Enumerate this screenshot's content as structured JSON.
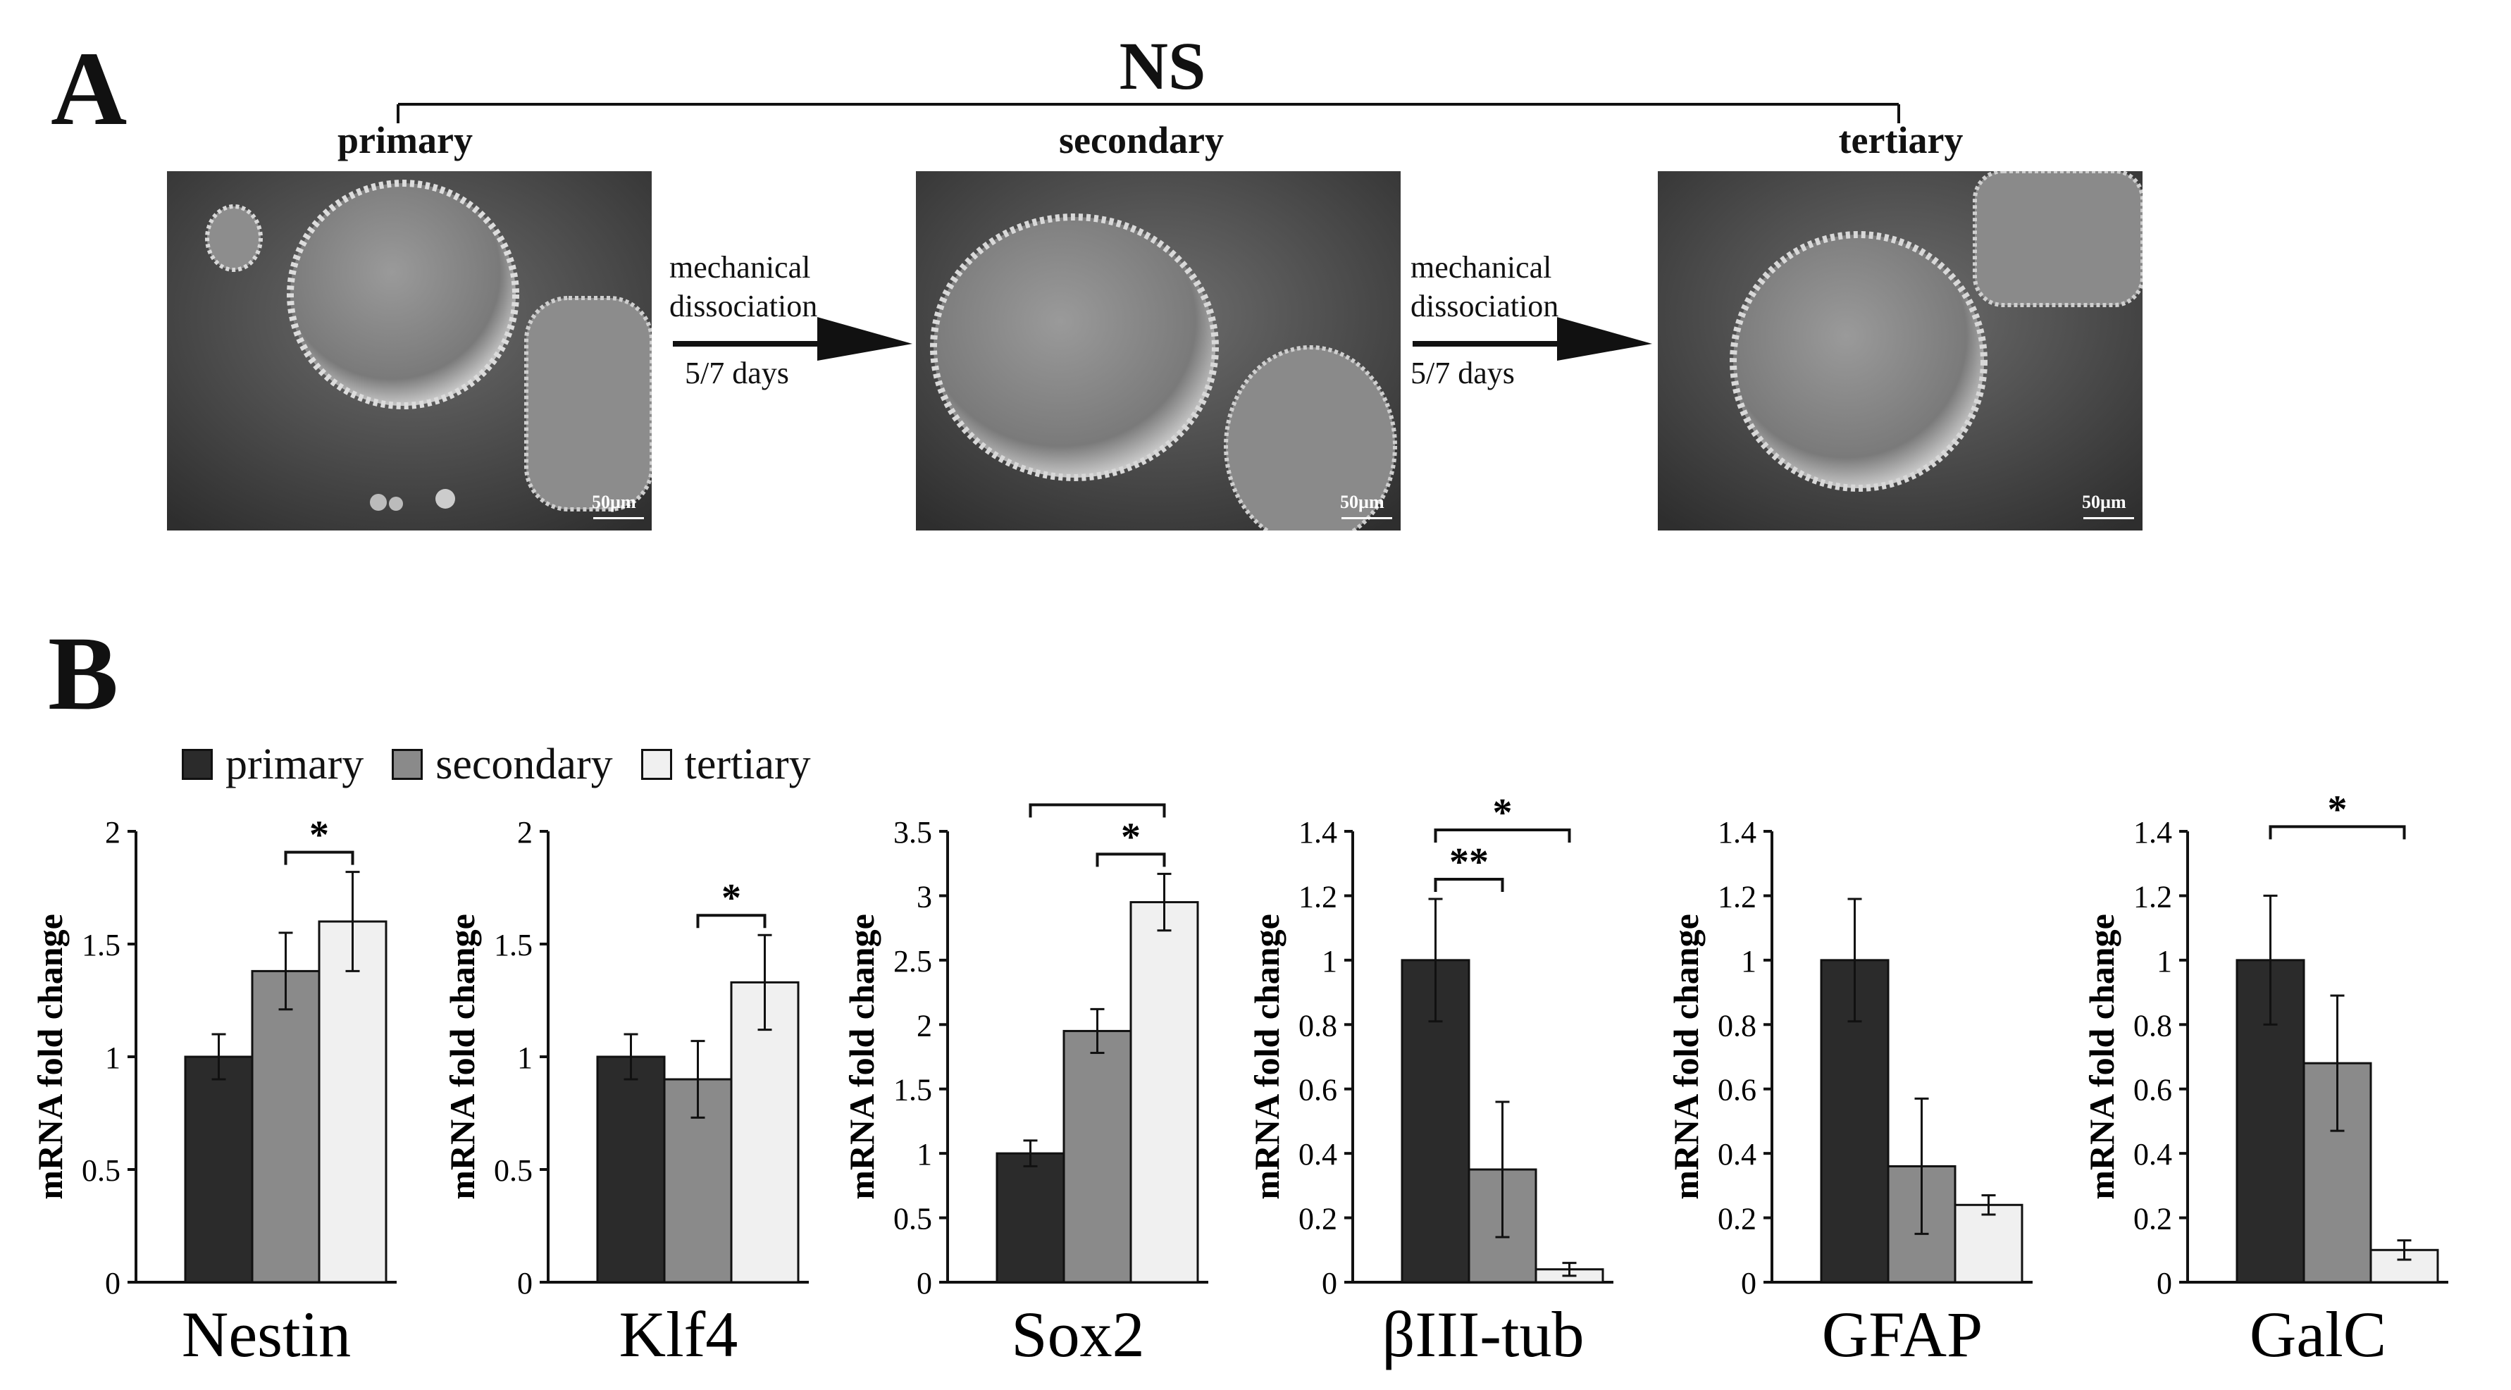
{
  "panel_a": {
    "letter": "A",
    "group_label": "NS",
    "stages": [
      {
        "label": "primary",
        "scale_bar": "50µm"
      },
      {
        "label": "secondary",
        "scale_bar": "50µm"
      },
      {
        "label": "tertiary",
        "scale_bar": "50µm"
      }
    ],
    "arrows": [
      {
        "line1": "mechanical",
        "line2": "dissociation",
        "line3": "5/7 days"
      },
      {
        "line1": "mechanical",
        "line2": "dissociation",
        "line3": "5/7 days"
      }
    ]
  },
  "panel_b": {
    "letter": "B",
    "legend": [
      {
        "label": "primary",
        "color": "#2b2b2b"
      },
      {
        "label": "secondary",
        "color": "#8a8a8a"
      },
      {
        "label": "tertiary",
        "color": "#f0f0f0"
      }
    ]
  },
  "chart_data": [
    {
      "type": "bar",
      "title": "Nestin",
      "ylabel": "mRNA fold change",
      "categories": [
        "primary",
        "secondary",
        "tertiary"
      ],
      "values": [
        1.0,
        1.38,
        1.6
      ],
      "errors": [
        0.1,
        0.17,
        0.22
      ],
      "ylim": [
        0,
        2
      ],
      "yticks": [
        "0",
        "0.5",
        "1",
        "1.5",
        "2"
      ],
      "significance": [
        {
          "from": 1,
          "to": 2,
          "label": "*"
        }
      ]
    },
    {
      "type": "bar",
      "title": "Klf4",
      "ylabel": "mRNA fold change",
      "categories": [
        "primary",
        "secondary",
        "tertiary"
      ],
      "values": [
        1.0,
        0.9,
        1.33
      ],
      "errors": [
        0.1,
        0.17,
        0.21
      ],
      "ylim": [
        0,
        2
      ],
      "yticks": [
        "0",
        "0.5",
        "1",
        "1.5",
        "2"
      ],
      "significance": [
        {
          "from": 1,
          "to": 2,
          "label": "*"
        }
      ]
    },
    {
      "type": "bar",
      "title": "Sox2",
      "ylabel": "mRNA fold change",
      "categories": [
        "primary",
        "secondary",
        "tertiary"
      ],
      "values": [
        1.0,
        1.95,
        2.95
      ],
      "errors": [
        0.1,
        0.17,
        0.22
      ],
      "ylim": [
        0,
        3.5
      ],
      "yticks": [
        "0",
        "0.5",
        "1",
        "1.5",
        "2",
        "2.5",
        "3",
        "3.5"
      ],
      "significance": [
        {
          "from": 0,
          "to": 2,
          "label": "*"
        },
        {
          "from": 1,
          "to": 2,
          "label": "*"
        }
      ]
    },
    {
      "type": "bar",
      "title": "βIII-tub",
      "ylabel": "mRNA fold change",
      "categories": [
        "primary",
        "secondary",
        "tertiary"
      ],
      "values": [
        1.0,
        0.35,
        0.04
      ],
      "errors": [
        0.19,
        0.21,
        0.02
      ],
      "ylim": [
        0,
        1.4
      ],
      "yticks": [
        "0",
        "0.2",
        "0.4",
        "0.6",
        "0.8",
        "1",
        "1.2",
        "1.4"
      ],
      "significance": [
        {
          "from": 0,
          "to": 2,
          "label": "*"
        },
        {
          "from": 0,
          "to": 1,
          "label": "**"
        }
      ]
    },
    {
      "type": "bar",
      "title": "GFAP",
      "ylabel": "mRNA fold change",
      "categories": [
        "primary",
        "secondary",
        "tertiary"
      ],
      "values": [
        1.0,
        0.36,
        0.24
      ],
      "errors": [
        0.19,
        0.21,
        0.03
      ],
      "ylim": [
        0,
        1.4
      ],
      "yticks": [
        "0",
        "0.2",
        "0.4",
        "0.6",
        "0.8",
        "1",
        "1.2",
        "1.4"
      ],
      "significance": []
    },
    {
      "type": "bar",
      "title": "GalC",
      "ylabel": "mRNA fold change",
      "categories": [
        "primary",
        "secondary",
        "tertiary"
      ],
      "values": [
        1.0,
        0.68,
        0.1
      ],
      "errors": [
        0.2,
        0.21,
        0.03
      ],
      "ylim": [
        0,
        1.4
      ],
      "yticks": [
        "0",
        "0.2",
        "0.4",
        "0.6",
        "0.8",
        "1",
        "1.2",
        "1.4"
      ],
      "significance": [
        {
          "from": 0,
          "to": 2,
          "label": "*"
        }
      ]
    }
  ]
}
